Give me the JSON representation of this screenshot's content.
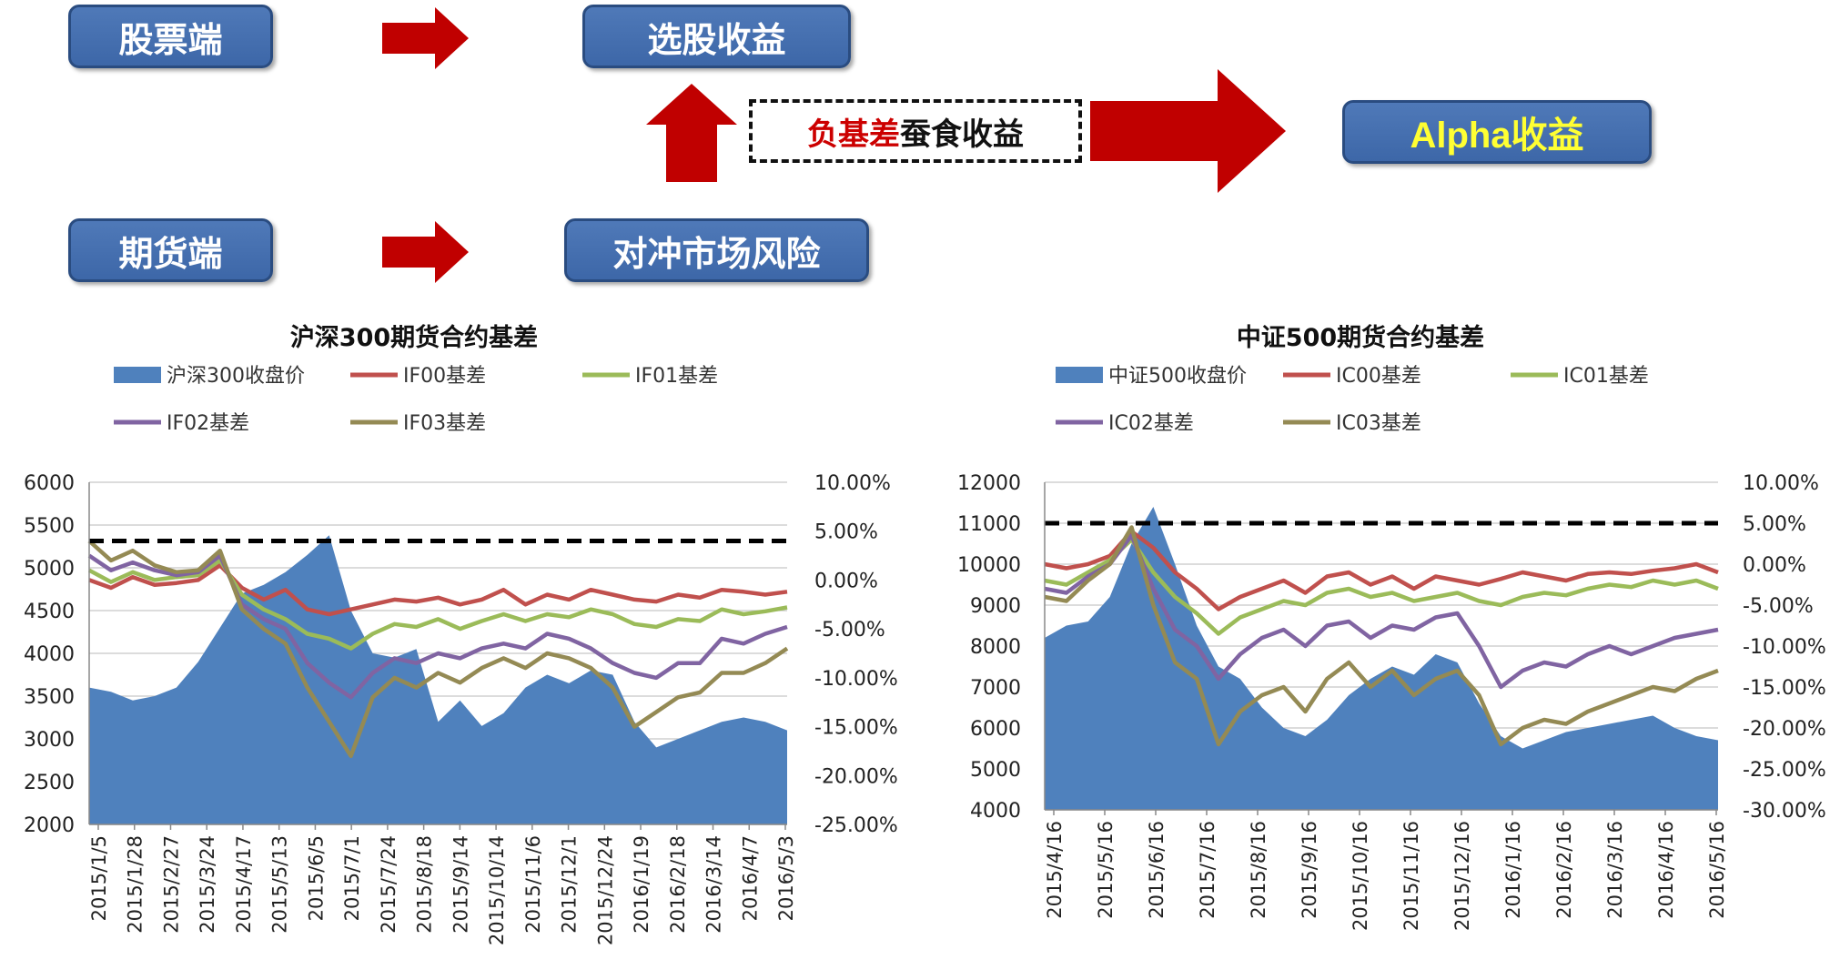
{
  "flow": {
    "stock_side": "股票端",
    "stock_selection": "选股收益",
    "futures_side": "期货端",
    "hedge": "对冲市场风险",
    "negative_basis": "负基差",
    "erodes": "蚕食收益",
    "alpha": "Alpha收益",
    "colors": {
      "box_fill": "#4472c4",
      "box_border": "#2a4c80",
      "arrow": "#c00000",
      "alpha_text": "#ffff33"
    }
  },
  "chart_data": [
    {
      "type": "area+line",
      "title": "沪深300期货合约基差",
      "legend": [
        "沪深300收盘价",
        "IF00基差",
        "IF01基差",
        "IF02基差",
        "IF03基差"
      ],
      "x_ticks": [
        "2015/1/5",
        "2015/1/28",
        "2015/2/27",
        "2015/3/24",
        "2015/4/17",
        "2015/5/13",
        "2015/6/5",
        "2015/7/1",
        "2015/7/24",
        "2015/8/18",
        "2015/9/14",
        "2015/10/14",
        "2015/11/6",
        "2015/12/1",
        "2015/12/24",
        "2016/1/19",
        "2016/2/18",
        "2016/3/14",
        "2016/4/7",
        "2016/5/3"
      ],
      "y_left": {
        "min": 2000,
        "max": 6000,
        "ticks": [
          "6000",
          "5500",
          "5000",
          "4500",
          "4000",
          "3500",
          "3000",
          "2500",
          "2000"
        ]
      },
      "y_right": {
        "min": -25,
        "max": 10,
        "ticks": [
          "10.00%",
          "5.00%",
          "0.00%",
          "-5.00%",
          "-10.00%",
          "-15.00%",
          "-20.00%",
          "-25.00%"
        ]
      },
      "reference_line": 4.0,
      "area": {
        "name": "沪深300收盘价",
        "color": "#4f81bd",
        "values": [
          3600,
          3550,
          3450,
          3500,
          3600,
          3900,
          4300,
          4700,
          4800,
          4950,
          5150,
          5380,
          4500,
          4000,
          3950,
          4050,
          3200,
          3450,
          3150,
          3300,
          3600,
          3750,
          3650,
          3800,
          3750,
          3200,
          2900,
          3000,
          3100,
          3200,
          3250,
          3200,
          3100
        ]
      },
      "series": [
        {
          "name": "IF00基差",
          "color": "#c0504d",
          "values": [
            0.0,
            -0.8,
            0.3,
            -0.5,
            -0.3,
            0.0,
            1.5,
            -0.8,
            -2.0,
            -1.0,
            -3.0,
            -3.5,
            -3.0,
            -2.5,
            -2.0,
            -2.2,
            -1.8,
            -2.5,
            -2.0,
            -1.0,
            -2.5,
            -1.5,
            -2.0,
            -1.0,
            -1.5,
            -2.0,
            -2.2,
            -1.5,
            -1.8,
            -1.0,
            -1.2,
            -1.5,
            -1.2
          ]
        },
        {
          "name": "IF01基差",
          "color": "#9bbb59",
          "values": [
            1.0,
            -0.2,
            0.8,
            0.0,
            0.3,
            0.5,
            2.0,
            -1.5,
            -3.0,
            -4.0,
            -5.5,
            -6.0,
            -7.0,
            -5.5,
            -4.5,
            -4.8,
            -4.0,
            -5.0,
            -4.2,
            -3.5,
            -4.2,
            -3.5,
            -3.8,
            -3.0,
            -3.5,
            -4.5,
            -4.8,
            -4.0,
            -4.2,
            -3.0,
            -3.5,
            -3.2,
            -2.8
          ]
        },
        {
          "name": "IF02基差",
          "color": "#8064a2",
          "values": [
            2.5,
            1.0,
            1.8,
            1.0,
            0.5,
            0.8,
            2.5,
            -2.5,
            -4.0,
            -5.0,
            -8.5,
            -10.5,
            -12.0,
            -9.5,
            -8.0,
            -8.5,
            -7.5,
            -8.0,
            -7.0,
            -6.5,
            -7.0,
            -5.5,
            -6.0,
            -7.0,
            -8.5,
            -9.5,
            -10.0,
            -8.5,
            -8.5,
            -6.0,
            -6.5,
            -5.5,
            -4.8
          ]
        },
        {
          "name": "IF03基差",
          "color": "#948a54",
          "values": [
            4.0,
            2.0,
            3.0,
            1.5,
            0.8,
            1.0,
            3.0,
            -3.0,
            -5.0,
            -6.5,
            -11.0,
            -14.5,
            -18.0,
            -12.0,
            -10.0,
            -11.0,
            -9.5,
            -10.5,
            -9.0,
            -8.0,
            -9.0,
            -7.5,
            -8.0,
            -9.0,
            -11.0,
            -15.0,
            -13.5,
            -12.0,
            -11.5,
            -9.5,
            -9.5,
            -8.5,
            -7.0
          ]
        }
      ]
    },
    {
      "type": "area+line",
      "title": "中证500期货合约基差",
      "legend": [
        "中证500收盘价",
        "IC00基差",
        "IC01基差",
        "IC02基差",
        "IC03基差"
      ],
      "x_ticks": [
        "2015/4/16",
        "2015/5/16",
        "2015/6/16",
        "2015/7/16",
        "2015/8/16",
        "2015/9/16",
        "2015/10/16",
        "2015/11/16",
        "2015/12/16",
        "2016/1/16",
        "2016/2/16",
        "2016/3/16",
        "2016/4/16",
        "2016/5/16"
      ],
      "y_left": {
        "min": 4000,
        "max": 12000,
        "ticks": [
          "12000",
          "11000",
          "10000",
          "9000",
          "8000",
          "7000",
          "6000",
          "5000",
          "4000"
        ]
      },
      "y_right": {
        "min": -30,
        "max": 10,
        "ticks": [
          "10.00%",
          "5.00%",
          "0.00%",
          "-5.00%",
          "-10.00%",
          "-15.00%",
          "-20.00%",
          "-25.00%",
          "-30.00%"
        ]
      },
      "reference_line": 5.0,
      "area": {
        "name": "中证500收盘价",
        "color": "#4f81bd",
        "values": [
          8200,
          8500,
          8600,
          9200,
          10500,
          11400,
          10000,
          8500,
          7500,
          7200,
          6500,
          6000,
          5800,
          6200,
          6800,
          7200,
          7500,
          7300,
          7800,
          7600,
          6600,
          5800,
          5500,
          5700,
          5900,
          6000,
          6100,
          6200,
          6300,
          6000,
          5800,
          5700
        ]
      },
      "series": [
        {
          "name": "IC00基差",
          "color": "#c0504d",
          "values": [
            0.0,
            -0.5,
            0.0,
            1.0,
            4.0,
            2.0,
            -1.0,
            -3.0,
            -5.5,
            -4.0,
            -3.0,
            -2.0,
            -3.5,
            -1.5,
            -1.0,
            -2.5,
            -1.5,
            -3.0,
            -1.5,
            -2.0,
            -2.5,
            -1.8,
            -1.0,
            -1.5,
            -2.0,
            -1.2,
            -1.0,
            -1.2,
            -0.8,
            -0.5,
            0.0,
            -1.0
          ]
        },
        {
          "name": "IC01基差",
          "color": "#9bbb59",
          "values": [
            -2.0,
            -2.5,
            -1.0,
            0.5,
            3.0,
            -1.0,
            -4.0,
            -6.0,
            -8.5,
            -6.5,
            -5.5,
            -4.5,
            -5.0,
            -3.5,
            -3.0,
            -4.0,
            -3.5,
            -4.5,
            -4.0,
            -3.5,
            -4.5,
            -5.0,
            -4.0,
            -3.5,
            -3.8,
            -3.0,
            -2.5,
            -2.8,
            -2.0,
            -2.5,
            -2.0,
            -3.0
          ]
        },
        {
          "name": "IC02基差",
          "color": "#8064a2",
          "values": [
            -3.0,
            -3.5,
            -1.5,
            0.0,
            3.5,
            -3.0,
            -8.0,
            -10.0,
            -14.0,
            -11.0,
            -9.0,
            -8.0,
            -10.0,
            -7.5,
            -7.0,
            -9.0,
            -7.5,
            -8.0,
            -6.5,
            -6.0,
            -10.0,
            -15.0,
            -13.0,
            -12.0,
            -12.5,
            -11.0,
            -10.0,
            -11.0,
            -10.0,
            -9.0,
            -8.5,
            -8.0
          ]
        },
        {
          "name": "IC03基差",
          "color": "#948a54",
          "values": [
            -4.0,
            -4.5,
            -2.0,
            0.0,
            4.5,
            -5.0,
            -12.0,
            -14.0,
            -22.0,
            -18.0,
            -16.0,
            -15.0,
            -18.0,
            -14.0,
            -12.0,
            -15.0,
            -13.0,
            -16.0,
            -14.0,
            -13.0,
            -16.0,
            -22.0,
            -20.0,
            -19.0,
            -19.5,
            -18.0,
            -17.0,
            -16.0,
            -15.0,
            -15.5,
            -14.0,
            -13.0
          ]
        }
      ]
    }
  ]
}
